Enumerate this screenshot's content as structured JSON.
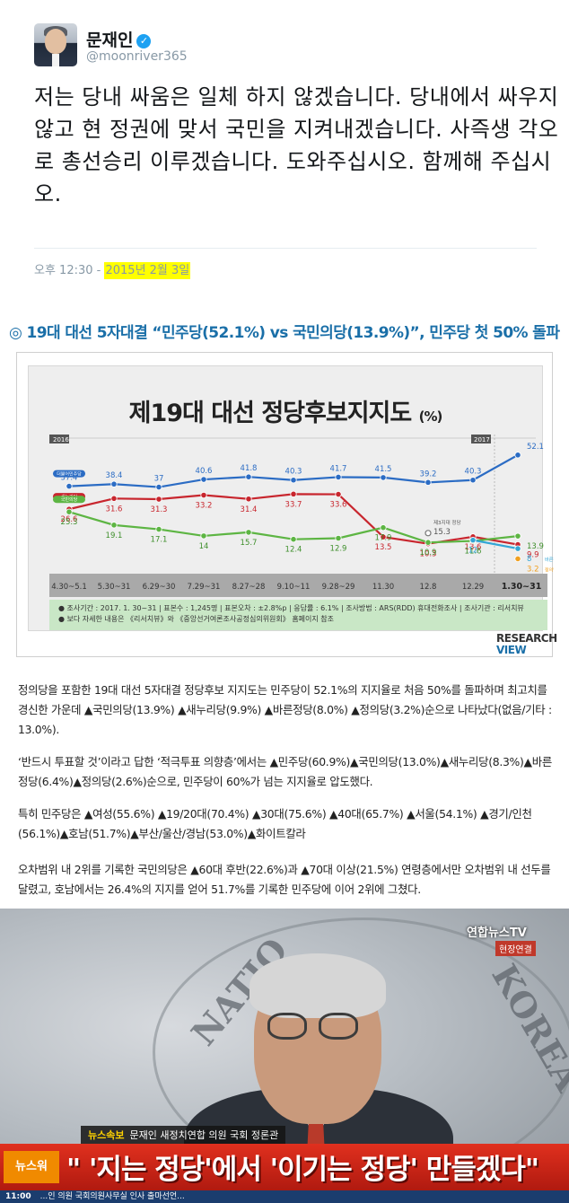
{
  "tweet": {
    "display_name": "문재인",
    "handle": "@moonriver365",
    "text": "저는 당내 싸움은 일체 하지 않겠습니다. 당내에서 싸우지 않고 현 정권에 맞서 국민을 지켜내겠습니다. 사즉생 각오로 총선승리 이루겠습니다. 도와주십시오. 함께해 주십시오.",
    "time": "오후 12:30 -",
    "date": "2015년 2월 3일",
    "verified_icon": "verified-check-icon"
  },
  "article": {
    "headline": "◎ 19대 대선 5자대결 “민주당(52.1%) vs 국민의당(13.9%)”, 민주당 첫 50% 돌파",
    "paragraphs": [
      "정의당을 포함한 19대 대선 5자대결 정당후보 지지도는 민주당이 52.1%의 지지율로 처음 50%를 돌파하며 최고치를 경신한 가운데 ▲국민의당(13.9%) ▲새누리당(9.9%) ▲바른정당(8.0%) ▲정의당(3.2%)순으로 나타났다(없음/기타 : 13.0%).",
      "‘반드시 투표할 것’이라고 답한 ‘적극투표 의향층’에서는 ▲민주당(60.9%)▲국민의당(13.0%)▲새누리당(8.3%)▲바른정당(6.4%)▲정의당(2.6%)순으로, 민주당이 60%가 넘는 지지율로 압도했다.",
      "특히 민주당은 ▲여성(55.6%) ▲19/20대(70.4%) ▲30대(75.6%) ▲40대(65.7%) ▲서울(54.1%) ▲경기/인천(56.1%)▲호남(51.7%)▲부산/울산/경남(53.0%)▲화이트칼라",
      "오차범위 내 2위를 기록한 국민의당은 ▲60대 후반(22.6%)과 ▲70대 이상(21.5%) 연령층에서만 오차범위 내 선두를 달렸고, 호남에서는 26.4%의 지지를 얻어 51.7%를 기록한 민주당에 이어 2위에 그쳤다."
    ]
  },
  "chart_data": {
    "type": "line",
    "title": "제19대 대선 정당후보지지도",
    "title_unit": "(%)",
    "year_labels": [
      "2016",
      "2017"
    ],
    "categories": [
      "4.30~5.1",
      "5.30~31",
      "6.29~30",
      "7.29~31",
      "8.27~28",
      "9.10~11",
      "9.28~29",
      "11.30",
      "12.8",
      "12.29",
      "1.30~31"
    ],
    "series": [
      {
        "name": "더불어민주당",
        "color": "#2b6cc4",
        "values": [
          37.4,
          38.4,
          37.0,
          40.6,
          41.8,
          40.3,
          41.7,
          41.5,
          39.2,
          40.3,
          52.1
        ]
      },
      {
        "name": "새누리당",
        "color": "#c8262e",
        "values": [
          26.6,
          31.6,
          31.3,
          33.2,
          31.4,
          33.7,
          33.6,
          13.5,
          10.3,
          13.6,
          9.9
        ]
      },
      {
        "name": "국민의당",
        "color": "#5db543",
        "values": [
          25.3,
          19.1,
          17.1,
          14.0,
          15.7,
          12.4,
          12.9,
          17.9,
          10.9,
          11.6,
          13.9
        ]
      },
      {
        "name": "바른정당",
        "color": "#33a6d6",
        "values": [
          null,
          null,
          null,
          null,
          null,
          null,
          null,
          null,
          null,
          12.0,
          8.0
        ]
      },
      {
        "name": "정의당",
        "color": "#f0a020",
        "values": [
          null,
          null,
          null,
          null,
          null,
          null,
          null,
          null,
          null,
          null,
          3.2
        ]
      }
    ],
    "end_labels": {
      "바른정당": "바른정당",
      "정의당": "정의당"
    },
    "annotation": {
      "text": "제3지대 정당",
      "value": 15.3
    },
    "series_labels": [
      "더불어민주당",
      "새누리당",
      "국민의당"
    ],
    "note_line1": "● 조사기간 : 2017. 1. 30~31  | 표본수 : 1,245명  | 표본오차 : ±2.8%p  | 응답률 : 6.1%  | 조사방법 : ARS(RDD) 휴대전화조사  | 조사기관 : 리서치뷰",
    "note_line2": "● 보다 자세한 내용은 《리서치뷰》와 《중앙선거여론조사공정심의위원회》 홈페이지 참조",
    "logo_line1": "RESEARCH",
    "logo_line2": "VIEW"
  },
  "video": {
    "channel": "연합뉴스TV",
    "live_tag": "현장연결",
    "sub_tag": "뉴스속보",
    "sub_text": "문재인 새정치연합 의원  국회 정론관",
    "brand": "뉴스워",
    "caption": "\" '지는 정당'에서 '이기는 정당' 만들겠다\"",
    "clock": "11:00",
    "ticker": "...인 의원 국회의원사무실 인사 출마선언..."
  }
}
